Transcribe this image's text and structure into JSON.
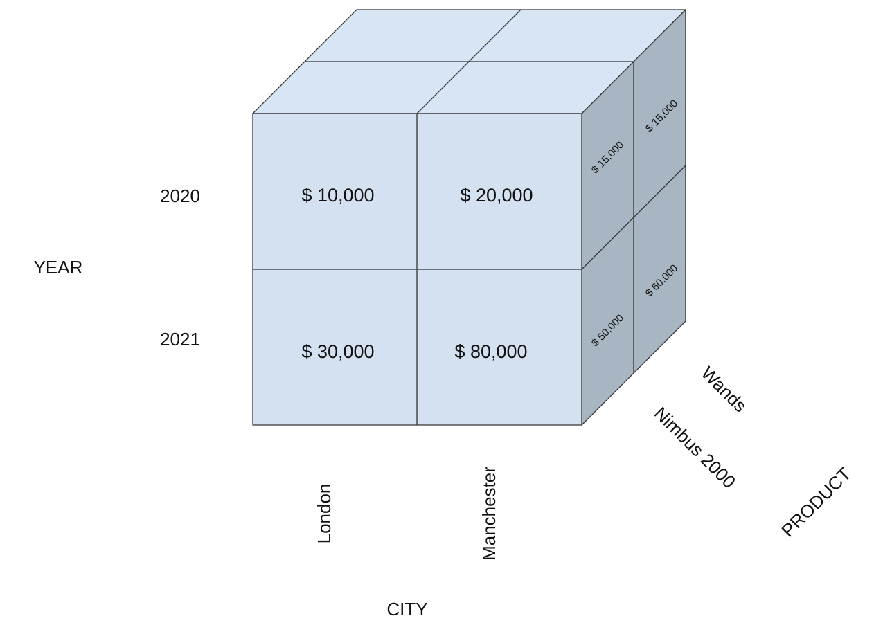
{
  "axes": {
    "year": {
      "title": "YEAR",
      "values": [
        "2020",
        "2021"
      ]
    },
    "city": {
      "title": "CITY",
      "values": [
        "London",
        "Manchester"
      ]
    },
    "product": {
      "title": "PRODUCT",
      "values": [
        "Nimbus 2000",
        "Wands"
      ]
    }
  },
  "front_cells": {
    "london_2020": "$ 10,000",
    "manchester_2020": "$ 20,000",
    "london_2021": "$ 30,000",
    "manchester_2021": "$ 80,000"
  },
  "side_cells": {
    "nimbus_2020": "$ 15,000",
    "wands_2020": "$ 15,000",
    "nimbus_2021": "$ 50,000",
    "wands_2021": "$ 60,000"
  },
  "colors": {
    "front_face": "#d4e1f1",
    "top_face": "#d8e5f4",
    "side_face": "#a8b5c3",
    "edge": "#333333"
  }
}
